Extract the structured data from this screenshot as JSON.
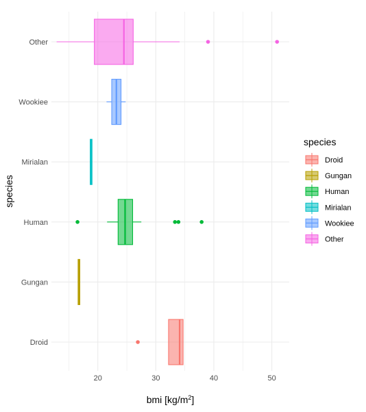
{
  "chart_data": {
    "type": "boxplot",
    "orientation": "horizontal",
    "xlabel_prefix": "bmi",
    "xlabel_unit": "kg/m",
    "xlabel_unit_power": "2",
    "ylabel": "species",
    "xlim": [
      12,
      53
    ],
    "x_ticks": [
      20,
      30,
      40,
      50
    ],
    "x_tick_labels": [
      "20",
      "30",
      "40",
      "50"
    ],
    "grid": true,
    "legend_title": "species",
    "legend_position": "right",
    "series": [
      {
        "name": "Droid",
        "color": "#F8766D",
        "whisker_low": 32.2,
        "q1": 32.2,
        "median": 34.1,
        "q3": 34.7,
        "whisker_high": 34.7,
        "outliers": [
          26.9
        ]
      },
      {
        "name": "Gungan",
        "color": "#B79F00",
        "whisker_low": 16.6,
        "q1": 16.6,
        "median": 16.8,
        "q3": 16.9,
        "whisker_high": 16.9,
        "outliers": []
      },
      {
        "name": "Human",
        "color": "#00BA38",
        "whisker_low": 21.6,
        "q1": 23.5,
        "median": 24.7,
        "q3": 26.0,
        "whisker_high": 27.5,
        "outliers": [
          16.5,
          33.3,
          33.9,
          37.9
        ]
      },
      {
        "name": "Mirialan",
        "color": "#00BFC4",
        "whisker_low": 18.7,
        "q1": 18.7,
        "median": 18.8,
        "q3": 19.0,
        "whisker_high": 19.0,
        "outliers": []
      },
      {
        "name": "Wookiee",
        "color": "#619CFF",
        "whisker_low": 21.5,
        "q1": 22.4,
        "median": 23.2,
        "q3": 24.0,
        "whisker_high": 24.8,
        "outliers": []
      },
      {
        "name": "Other",
        "color": "#F564E3",
        "whisker_low": 12.9,
        "q1": 19.4,
        "median": 24.5,
        "q3": 26.1,
        "whisker_high": 34.1,
        "outliers": [
          39.0,
          50.9
        ]
      }
    ]
  }
}
